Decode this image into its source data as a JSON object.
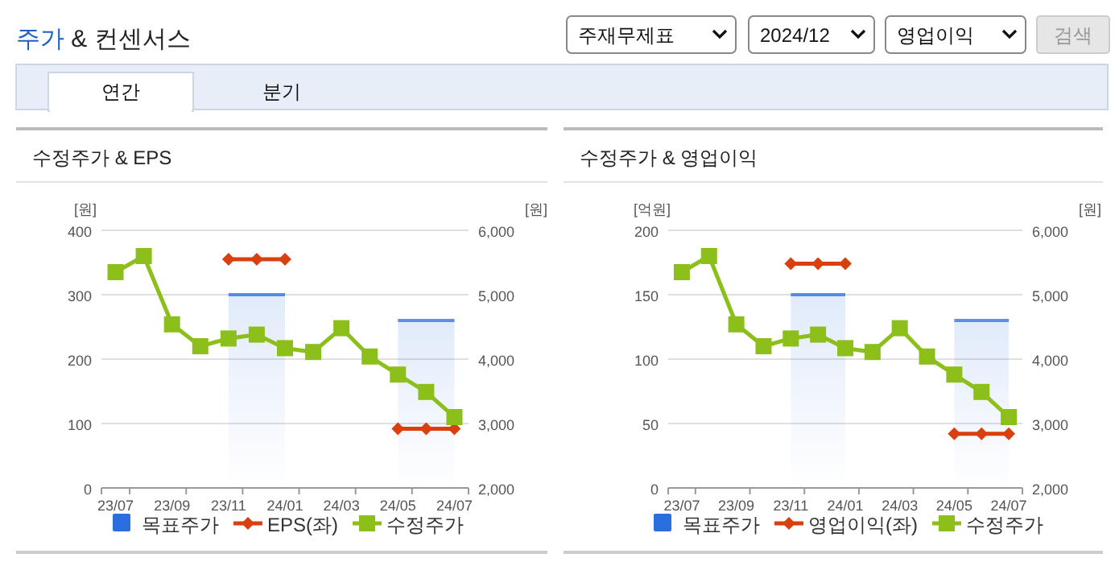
{
  "chart_data": [
    {
      "type": "other",
      "title": "주가 & 컨센서스",
      "annotations": [
        "주재무제표",
        "2024/12",
        "영업이익",
        "검색",
        "연간",
        "분기"
      ]
    },
    {
      "type": "line",
      "title": "수정주가 & EPS",
      "ylabel": "[원]",
      "y2label": "[원]",
      "categories": [
        "23/07",
        null,
        "23/09",
        null,
        "23/11",
        null,
        "24/01",
        null,
        "24/03",
        null,
        "24/05",
        null,
        "24/07"
      ],
      "ylim": [
        0,
        400
      ],
      "yticks": [
        0,
        100,
        200,
        300,
        400
      ],
      "y2lim": [
        2000,
        6000
      ],
      "y2ticks": [
        {
          "value": 2000,
          "label": "2,000"
        },
        {
          "value": 3000,
          "label": "3,000"
        },
        {
          "value": 4000,
          "label": "4,000"
        },
        {
          "value": 5000,
          "label": "5,000"
        },
        {
          "value": 6000,
          "label": "6,000"
        }
      ],
      "grid": "y",
      "legend": "bottom",
      "series": [
        {
          "name": "목표주가",
          "type": "area",
          "axis": "y2",
          "color": "#2a6ee0",
          "values": [
            null,
            null,
            null,
            null,
            5000,
            5000,
            5000,
            null,
            null,
            null,
            4600,
            4600,
            4600
          ]
        },
        {
          "name": "EPS(좌)",
          "type": "line",
          "axis": "y",
          "color": "#d9400f",
          "marker": "diamond",
          "values": [
            null,
            null,
            null,
            null,
            355,
            355,
            355,
            null,
            null,
            null,
            92,
            92,
            92
          ]
        },
        {
          "name": "수정주가",
          "type": "line",
          "axis": "y2",
          "color": "#8cbf1a",
          "marker": "square",
          "values": [
            5350,
            5600,
            4540,
            4200,
            4320,
            4380,
            4170,
            4110,
            4480,
            4040,
            3760,
            3490,
            3100
          ]
        }
      ]
    },
    {
      "type": "line",
      "title": "수정주가 & 영업이익",
      "ylabel": "[억원]",
      "y2label": "[원]",
      "categories": [
        "23/07",
        null,
        "23/09",
        null,
        "23/11",
        null,
        "24/01",
        null,
        "24/03",
        null,
        "24/05",
        null,
        "24/07"
      ],
      "ylim": [
        0,
        200
      ],
      "yticks": [
        0,
        50,
        100,
        150,
        200
      ],
      "y2lim": [
        2000,
        6000
      ],
      "y2ticks": [
        {
          "value": 2000,
          "label": "2,000"
        },
        {
          "value": 3000,
          "label": "3,000"
        },
        {
          "value": 4000,
          "label": "4,000"
        },
        {
          "value": 5000,
          "label": "5,000"
        },
        {
          "value": 6000,
          "label": "6,000"
        }
      ],
      "grid": "y",
      "legend": "bottom",
      "series": [
        {
          "name": "목표주가",
          "type": "area",
          "axis": "y2",
          "color": "#2a6ee0",
          "values": [
            null,
            null,
            null,
            null,
            5000,
            5000,
            5000,
            null,
            null,
            null,
            4600,
            4600,
            4600
          ]
        },
        {
          "name": "영업이익(좌)",
          "type": "line",
          "axis": "y",
          "color": "#d9400f",
          "marker": "diamond",
          "values": [
            null,
            null,
            null,
            null,
            174,
            174,
            174,
            null,
            null,
            null,
            42,
            42,
            42
          ]
        },
        {
          "name": "수정주가",
          "type": "line",
          "axis": "y2",
          "color": "#8cbf1a",
          "marker": "square",
          "values": [
            5350,
            5600,
            4540,
            4200,
            4320,
            4380,
            4170,
            4110,
            4480,
            4040,
            3760,
            3490,
            3100
          ]
        }
      ]
    }
  ]
}
